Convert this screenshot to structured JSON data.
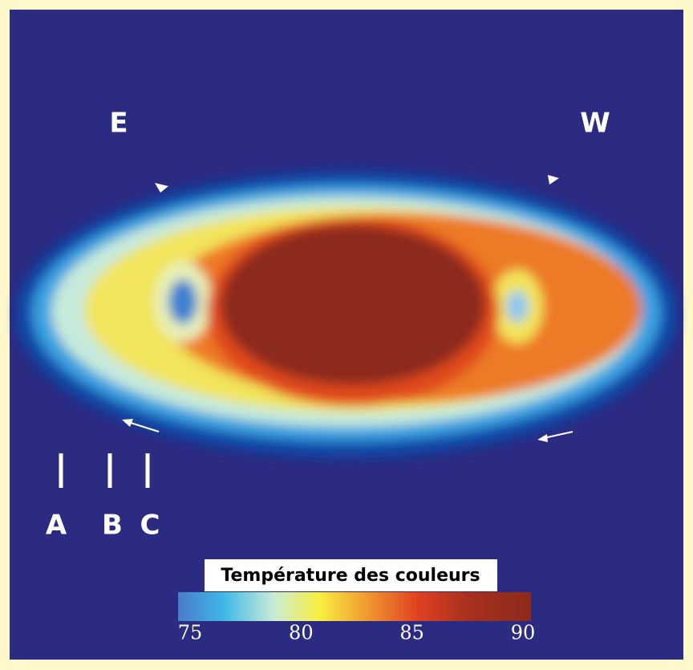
{
  "labels": {
    "east": "E",
    "west": "W",
    "a": "A",
    "b": "B",
    "c": "C"
  },
  "colorbar": {
    "title": "Température des couleurs",
    "lim": [
      75,
      90
    ],
    "ticks": [
      75,
      80,
      85,
      90
    ]
  }
}
